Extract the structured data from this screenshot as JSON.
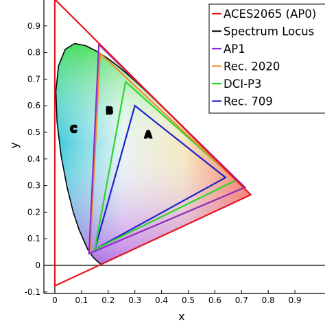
{
  "chart_data": {
    "type": "line",
    "title": "",
    "xlabel": "x",
    "ylabel": "y",
    "xlim": [
      -0.04,
      1.0
    ],
    "ylim": [
      -0.1,
      1.0
    ],
    "x_ticks": [
      "0",
      "0.1",
      "0.2",
      "0.3",
      "0.4",
      "0.5",
      "0.6",
      "0.7",
      "0.8",
      "0.9"
    ],
    "y_ticks": [
      "-0.1",
      "0",
      "0.1",
      "0.2",
      "0.3",
      "0.4",
      "0.5",
      "0.6",
      "0.7",
      "0.8",
      "0.9"
    ],
    "grid": false,
    "legend_position": "top-right",
    "spectrum_locus": {
      "name": "Spectrum Locus",
      "color": "#000000",
      "points": [
        [
          0.1741,
          0.005
        ],
        [
          0.1738,
          0.0049
        ],
        [
          0.1733,
          0.0048
        ],
        [
          0.1726,
          0.0048
        ],
        [
          0.1714,
          0.0051
        ],
        [
          0.1689,
          0.0069
        ],
        [
          0.1644,
          0.0109
        ],
        [
          0.1566,
          0.0177
        ],
        [
          0.144,
          0.0297
        ],
        [
          0.1241,
          0.0578
        ],
        [
          0.0913,
          0.1327
        ],
        [
          0.0687,
          0.2007
        ],
        [
          0.0454,
          0.295
        ],
        [
          0.0235,
          0.4127
        ],
        [
          0.0082,
          0.5384
        ],
        [
          0.0039,
          0.6548
        ],
        [
          0.0139,
          0.7502
        ],
        [
          0.0389,
          0.812
        ],
        [
          0.0743,
          0.8338
        ],
        [
          0.1142,
          0.8262
        ],
        [
          0.1547,
          0.8059
        ],
        [
          0.1929,
          0.7816
        ],
        [
          0.2296,
          0.7543
        ],
        [
          0.2658,
          0.7243
        ],
        [
          0.3016,
          0.6923
        ],
        [
          0.3373,
          0.6589
        ],
        [
          0.3731,
          0.6245
        ],
        [
          0.4087,
          0.5896
        ],
        [
          0.4441,
          0.5547
        ],
        [
          0.4788,
          0.5202
        ],
        [
          0.5125,
          0.4866
        ],
        [
          0.5448,
          0.4544
        ],
        [
          0.5752,
          0.4242
        ],
        [
          0.6029,
          0.3965
        ],
        [
          0.627,
          0.3725
        ],
        [
          0.6482,
          0.3514
        ],
        [
          0.6658,
          0.334
        ],
        [
          0.6801,
          0.3197
        ],
        [
          0.6915,
          0.3083
        ],
        [
          0.7006,
          0.2993
        ],
        [
          0.7079,
          0.292
        ],
        [
          0.714,
          0.2859
        ],
        [
          0.719,
          0.2809
        ],
        [
          0.723,
          0.277
        ],
        [
          0.726,
          0.274
        ],
        [
          0.7283,
          0.2717
        ],
        [
          0.73,
          0.27
        ],
        [
          0.7311,
          0.2689
        ],
        [
          0.732,
          0.268
        ],
        [
          0.7327,
          0.2673
        ],
        [
          0.7334,
          0.2666
        ],
        [
          0.734,
          0.266
        ],
        [
          0.7344,
          0.2656
        ],
        [
          0.7347,
          0.2653
        ]
      ]
    },
    "series": [
      {
        "name": "ACES2065 (AP0)",
        "color": "#e8141c",
        "points": [
          [
            0.7347,
            0.2653
          ],
          [
            0.0,
            1.0
          ],
          [
            0.0001,
            -0.077
          ]
        ]
      },
      {
        "name": "Spectrum Locus",
        "color": "#000000",
        "points": []
      },
      {
        "name": "AP1",
        "color": "#8a2ecf",
        "points": [
          [
            0.713,
            0.293
          ],
          [
            0.165,
            0.83
          ],
          [
            0.128,
            0.044
          ]
        ]
      },
      {
        "name": "Rec. 2020",
        "color": "#f28a30",
        "points": [
          [
            0.708,
            0.292
          ],
          [
            0.17,
            0.797
          ],
          [
            0.131,
            0.046
          ]
        ]
      },
      {
        "name": "DCI-P3",
        "color": "#2ad62a",
        "points": [
          [
            0.68,
            0.32
          ],
          [
            0.265,
            0.69
          ],
          [
            0.15,
            0.06
          ]
        ]
      },
      {
        "name": "Rec. 709",
        "color": "#1e22c8",
        "points": [
          [
            0.64,
            0.33
          ],
          [
            0.3,
            0.6
          ],
          [
            0.15,
            0.06
          ]
        ]
      }
    ],
    "annotations": [
      {
        "text": "A",
        "x": 0.35,
        "y": 0.48,
        "color": "#f2a33a"
      },
      {
        "text": "B",
        "x": 0.205,
        "y": 0.57,
        "color": "#f2a33a"
      },
      {
        "text": "C",
        "x": 0.07,
        "y": 0.5,
        "color": "#f2a33a"
      }
    ]
  }
}
